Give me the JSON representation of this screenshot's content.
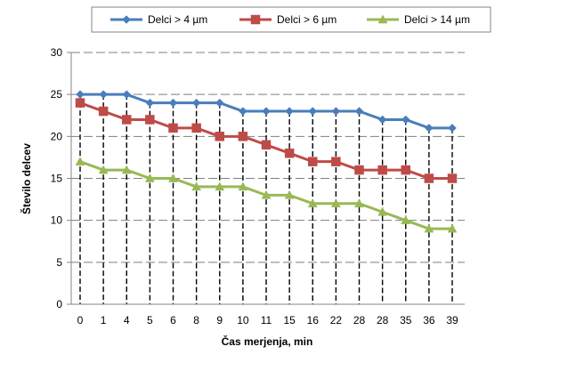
{
  "chart_data": {
    "type": "line",
    "title": "",
    "xlabel": "Čas merjenja, min",
    "ylabel": "Število delcev",
    "categories": [
      "0",
      "1",
      "4",
      "5",
      "6",
      "8",
      "9",
      "10",
      "11",
      "15",
      "16",
      "22",
      "28",
      "28",
      "35",
      "36",
      "39"
    ],
    "ylim": [
      0,
      30
    ],
    "yticks": [
      0,
      5,
      10,
      15,
      20,
      25,
      30
    ],
    "grid": "horizontal dashed",
    "drop_lines": true,
    "legend_position": "top",
    "series": [
      {
        "name": "Delci > 4 µm",
        "color": "#4A7EBB",
        "marker": "diamond",
        "values": [
          25,
          25,
          25,
          24,
          24,
          24,
          24,
          23,
          23,
          23,
          23,
          23,
          23,
          22,
          22,
          21,
          21
        ]
      },
      {
        "name": "Delci > 6 µm",
        "color": "#BE4B48",
        "marker": "square",
        "values": [
          24,
          23,
          22,
          22,
          21,
          21,
          20,
          20,
          19,
          18,
          17,
          17,
          16,
          16,
          16,
          15,
          15
        ]
      },
      {
        "name": "Delci > 14 µm",
        "color": "#98B954",
        "marker": "triangle",
        "values": [
          17,
          16,
          16,
          15,
          15,
          14,
          14,
          14,
          13,
          13,
          12,
          12,
          12,
          11,
          10,
          9,
          9
        ]
      }
    ]
  }
}
